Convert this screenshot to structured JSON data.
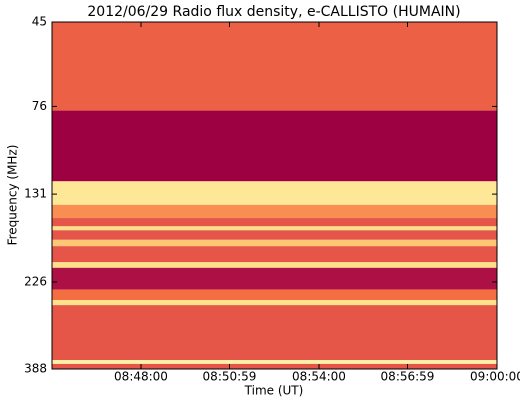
{
  "chart_data": {
    "type": "spectrogram",
    "title": "2012/06/29  Radio flux density, e-CALLISTO (HUMAIN)",
    "xlabel": "Time (UT)",
    "ylabel": "Frequency (MHz)",
    "xlim": [
      "08:45:00",
      "09:00:00"
    ],
    "xticks": [
      "08:48:00",
      "08:50:59",
      "08:54:00",
      "08:56:59",
      "09:00:00"
    ],
    "ylim": [
      45,
      388
    ],
    "yticks": [
      45,
      76,
      131,
      226,
      388
    ],
    "yscale": "log",
    "y_inverted": true,
    "freq_edges": [
      45,
      78,
      121,
      140,
      152,
      160,
      164,
      174,
      181,
      200,
      207,
      237,
      253,
      261,
      367,
      376,
      388
    ],
    "levels": [
      0.35,
      0.0,
      0.85,
      0.5,
      0.3,
      0.8,
      0.3,
      0.7,
      0.3,
      0.8,
      0.05,
      0.4,
      0.8,
      0.3,
      0.9,
      0.3
    ],
    "colormap": [
      "#9e0142",
      "#d53e4f",
      "#f46d43",
      "#fdae61",
      "#fee08b",
      "#ffffbf"
    ]
  }
}
